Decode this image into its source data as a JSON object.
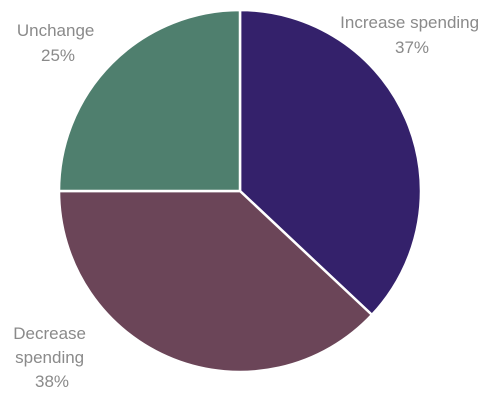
{
  "chart_data": {
    "type": "pie",
    "title": "",
    "slices": [
      {
        "label": "Increase spending",
        "label_lines": [
          "Increase spending"
        ],
        "value_label": "37%",
        "value": 37,
        "color": "#34216b"
      },
      {
        "label": "Decrease spending",
        "label_lines": [
          "Decrease",
          "spending"
        ],
        "value_label": "38%",
        "value": 38,
        "color": "#6b4558"
      },
      {
        "label": "Unchange",
        "label_lines": [
          "Unchange"
        ],
        "value_label": "25%",
        "value": 25,
        "color": "#4f7f6e"
      }
    ],
    "start_angle_deg": 0,
    "direction": "clockwise"
  }
}
